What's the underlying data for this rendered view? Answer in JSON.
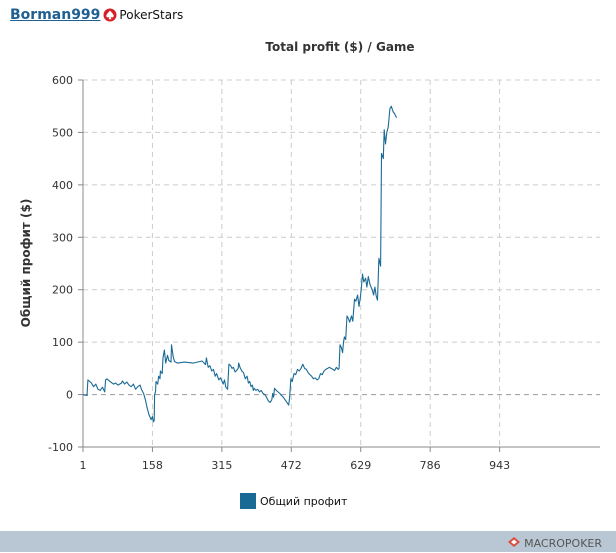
{
  "header": {
    "player_name": "Borman999",
    "room_name": "PokerStars",
    "room_icon": "pokerstars-spade-icon"
  },
  "footer": {
    "brand": "MACROPOKER",
    "brand_icon": "macropoker-logo-icon"
  },
  "colors": {
    "series": "#1a6a96",
    "grid": "#cccccc",
    "axis": "#888888",
    "footer": "#b9c7d4",
    "player_link": "#1f5f91"
  },
  "chart_data": {
    "type": "line",
    "title": "Total profit ($) / Game",
    "xlabel": "",
    "ylabel": "Общий профит ($)",
    "xlim": [
      1,
      1170
    ],
    "ylim": [
      -100,
      600
    ],
    "xticks": [
      1,
      158,
      315,
      472,
      629,
      786,
      943
    ],
    "yticks": [
      -100,
      0,
      100,
      200,
      300,
      400,
      500,
      600
    ],
    "grid": true,
    "legend_position": "bottom",
    "series": [
      {
        "name": "Общий профит",
        "color": "#1a6a96",
        "points": [
          [
            1,
            0
          ],
          [
            10,
            -2
          ],
          [
            12,
            28
          ],
          [
            20,
            22
          ],
          [
            25,
            15
          ],
          [
            30,
            20
          ],
          [
            35,
            10
          ],
          [
            40,
            8
          ],
          [
            45,
            14
          ],
          [
            50,
            5
          ],
          [
            52,
            28
          ],
          [
            55,
            30
          ],
          [
            62,
            25
          ],
          [
            70,
            20
          ],
          [
            75,
            22
          ],
          [
            80,
            18
          ],
          [
            88,
            22
          ],
          [
            90,
            26
          ],
          [
            95,
            20
          ],
          [
            100,
            24
          ],
          [
            105,
            18
          ],
          [
            110,
            15
          ],
          [
            115,
            20
          ],
          [
            120,
            10
          ],
          [
            125,
            15
          ],
          [
            130,
            18
          ],
          [
            133,
            10
          ],
          [
            138,
            2
          ],
          [
            142,
            -10
          ],
          [
            146,
            -25
          ],
          [
            150,
            -38
          ],
          [
            155,
            -48
          ],
          [
            158,
            -42
          ],
          [
            160,
            -52
          ],
          [
            162,
            -50
          ],
          [
            163,
            0
          ],
          [
            165,
            5
          ],
          [
            166,
            25
          ],
          [
            170,
            20
          ],
          [
            172,
            35
          ],
          [
            175,
            30
          ],
          [
            176,
            45
          ],
          [
            180,
            40
          ],
          [
            182,
            70
          ],
          [
            185,
            85
          ],
          [
            188,
            60
          ],
          [
            192,
            75
          ],
          [
            195,
            65
          ],
          [
            200,
            62
          ],
          [
            201,
            95
          ],
          [
            205,
            72
          ],
          [
            208,
            63
          ],
          [
            215,
            60
          ],
          [
            230,
            62
          ],
          [
            250,
            60
          ],
          [
            270,
            64
          ],
          [
            275,
            60
          ],
          [
            278,
            57
          ],
          [
            280,
            70
          ],
          [
            284,
            52
          ],
          [
            288,
            55
          ],
          [
            292,
            45
          ],
          [
            296,
            48
          ],
          [
            300,
            35
          ],
          [
            303,
            40
          ],
          [
            308,
            28
          ],
          [
            312,
            32
          ],
          [
            318,
            20
          ],
          [
            321,
            28
          ],
          [
            324,
            14
          ],
          [
            328,
            10
          ],
          [
            331,
            58
          ],
          [
            335,
            55
          ],
          [
            338,
            50
          ],
          [
            341,
            52
          ],
          [
            345,
            43
          ],
          [
            348,
            46
          ],
          [
            352,
            50
          ],
          [
            353,
            60
          ],
          [
            356,
            52
          ],
          [
            360,
            45
          ],
          [
            364,
            42
          ],
          [
            368,
            30
          ],
          [
            372,
            35
          ],
          [
            375,
            22
          ],
          [
            378,
            25
          ],
          [
            381,
            15
          ],
          [
            384,
            18
          ],
          [
            386,
            8
          ],
          [
            388,
            12
          ],
          [
            392,
            8
          ],
          [
            396,
            10
          ],
          [
            400,
            5
          ],
          [
            404,
            8
          ],
          [
            408,
            2
          ],
          [
            412,
            0
          ],
          [
            416,
            -5
          ],
          [
            420,
            -12
          ],
          [
            424,
            -15
          ],
          [
            428,
            -10
          ],
          [
            430,
            2
          ],
          [
            432,
            -5
          ],
          [
            434,
            12
          ],
          [
            438,
            8
          ],
          [
            442,
            5
          ],
          [
            446,
            2
          ],
          [
            450,
            -2
          ],
          [
            454,
            -5
          ],
          [
            458,
            -10
          ],
          [
            462,
            -15
          ],
          [
            466,
            -20
          ],
          [
            468,
            -8
          ],
          [
            471,
            30
          ],
          [
            474,
            25
          ],
          [
            478,
            40
          ],
          [
            482,
            38
          ],
          [
            486,
            48
          ],
          [
            490,
            45
          ],
          [
            494,
            50
          ],
          [
            498,
            58
          ],
          [
            502,
            50
          ],
          [
            506,
            48
          ],
          [
            510,
            42
          ],
          [
            514,
            38
          ],
          [
            518,
            35
          ],
          [
            522,
            30
          ],
          [
            526,
            32
          ],
          [
            530,
            28
          ],
          [
            534,
            30
          ],
          [
            538,
            40
          ],
          [
            542,
            38
          ],
          [
            546,
            45
          ],
          [
            550,
            48
          ],
          [
            554,
            50
          ],
          [
            558,
            52
          ],
          [
            562,
            50
          ],
          [
            566,
            48
          ],
          [
            570,
            46
          ],
          [
            574,
            52
          ],
          [
            578,
            48
          ],
          [
            580,
            50
          ],
          [
            582,
            95
          ],
          [
            585,
            90
          ],
          [
            588,
            80
          ],
          [
            590,
            100
          ],
          [
            592,
            110
          ],
          [
            595,
            105
          ],
          [
            598,
            150
          ],
          [
            601,
            145
          ],
          [
            604,
            138
          ],
          [
            608,
            150
          ],
          [
            611,
            140
          ],
          [
            615,
            182
          ],
          [
            618,
            178
          ],
          [
            622,
            190
          ],
          [
            625,
            168
          ],
          [
            628,
            185
          ],
          [
            630,
            200
          ],
          [
            633,
            230
          ],
          [
            636,
            215
          ],
          [
            640,
            222
          ],
          [
            643,
            205
          ],
          [
            646,
            225
          ],
          [
            650,
            210
          ],
          [
            655,
            200
          ],
          [
            658,
            190
          ],
          [
            661,
            205
          ],
          [
            664,
            188
          ],
          [
            667,
            180
          ],
          [
            670,
            260
          ],
          [
            674,
            245
          ],
          [
            676,
            460
          ],
          [
            680,
            450
          ],
          [
            682,
            505
          ],
          [
            685,
            478
          ],
          [
            688,
            500
          ],
          [
            691,
            510
          ],
          [
            695,
            545
          ],
          [
            698,
            550
          ],
          [
            702,
            540
          ],
          [
            706,
            535
          ],
          [
            710,
            528
          ]
        ]
      }
    ]
  }
}
